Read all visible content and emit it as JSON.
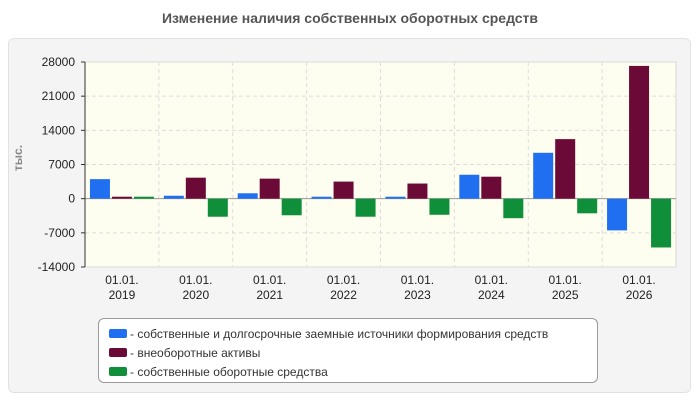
{
  "chart_data": {
    "type": "bar",
    "title": "Изменение наличия собственных оборотных средств",
    "ylabel": "тыс.",
    "xlabel": "",
    "ylim": [
      -14000,
      28000
    ],
    "yticks": [
      "28000",
      "21000",
      "14000",
      "7000",
      "0",
      "-7000",
      "-14000"
    ],
    "ytick_values": [
      28000,
      21000,
      14000,
      7000,
      0,
      -7000,
      -14000
    ],
    "grid": true,
    "legend_position": "bottom",
    "categories": [
      [
        "01.01.",
        "2019"
      ],
      [
        "01.01.",
        "2020"
      ],
      [
        "01.01.",
        "2021"
      ],
      [
        "01.01.",
        "2022"
      ],
      [
        "01.01.",
        "2023"
      ],
      [
        "01.01.",
        "2024"
      ],
      [
        "01.01.",
        "2025"
      ],
      [
        "01.01.",
        "2026"
      ]
    ],
    "series": [
      {
        "name": "собственные и долгосрочные заемные источники формирования средств",
        "color": "#1f6ff0",
        "values": [
          4000,
          600,
          1100,
          400,
          400,
          4900,
          9400,
          -6500
        ]
      },
      {
        "name": "внеоборотные активы",
        "color": "#6b0a36",
        "values": [
          400,
          4300,
          4100,
          3500,
          3100,
          4500,
          12200,
          27200
        ]
      },
      {
        "name": "собственные оборотные средства",
        "color": "#0f8f3a",
        "values": [
          400,
          -3700,
          -3400,
          -3700,
          -3300,
          -4000,
          -3000,
          -10000
        ]
      }
    ]
  }
}
